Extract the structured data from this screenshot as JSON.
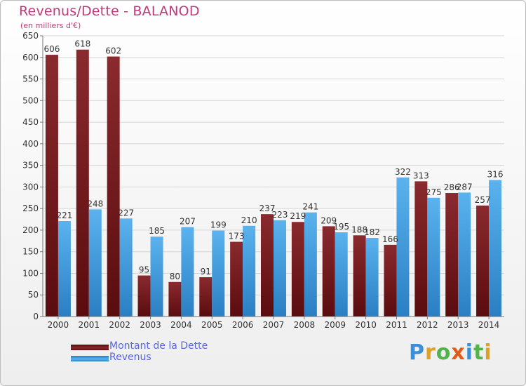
{
  "chart_data": {
    "type": "bar",
    "title": "Revenus/Dette - BALANOD",
    "subtitle": "(en milliers d'€)",
    "categories": [
      "2000",
      "2001",
      "2002",
      "2003",
      "2004",
      "2005",
      "2006",
      "2007",
      "2008",
      "2009",
      "2010",
      "2011",
      "2012",
      "2013",
      "2014"
    ],
    "series": [
      {
        "name": "Montant de la Dette",
        "color": "#7a1c1f",
        "values": [
          606,
          618,
          602,
          95,
          80,
          91,
          173,
          237,
          219,
          209,
          188,
          166,
          313,
          286,
          257
        ]
      },
      {
        "name": "Revenus",
        "color": "#3d9ede",
        "values": [
          221,
          248,
          227,
          185,
          207,
          199,
          210,
          223,
          241,
          195,
          182,
          322,
          275,
          287,
          316
        ]
      }
    ],
    "ylim": [
      0,
      650
    ],
    "ytick_step": 50,
    "grid": true,
    "legend_position": "bottom-left"
  },
  "brand": {
    "letters": [
      {
        "ch": "P",
        "color": "#3a8fd6"
      },
      {
        "ch": "r",
        "color": "#e0a020"
      },
      {
        "ch": "o",
        "color": "#52b34a"
      },
      {
        "ch": "x",
        "color": "#e05a1a"
      },
      {
        "ch": "i",
        "color": "#3a8fd6"
      },
      {
        "ch": "t",
        "color": "#52b34a"
      },
      {
        "ch": "i",
        "color": "#e0a020"
      }
    ]
  }
}
